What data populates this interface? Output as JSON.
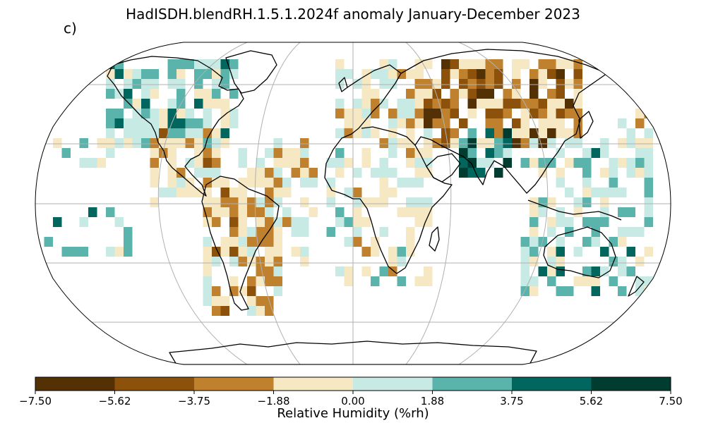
{
  "title": "HadISDH.blendRH.1.5.1.2024f anomaly January-December 2023",
  "panel_label": "c)",
  "colorbar": {
    "label": "Relative Humidity (%rh)",
    "ticks": [
      "−7.50",
      "−5.62",
      "−3.75",
      "−1.88",
      "0.00",
      "1.88",
      "3.75",
      "5.62",
      "7.50"
    ],
    "colors": [
      "#543005",
      "#8c510a",
      "#bf812d",
      "#f6e8c3",
      "#c7eae5",
      "#5ab4ac",
      "#01665e",
      "#003c30"
    ]
  },
  "colors": {
    "land_line": "#000000",
    "graticule": "#b0b0b0"
  }
}
